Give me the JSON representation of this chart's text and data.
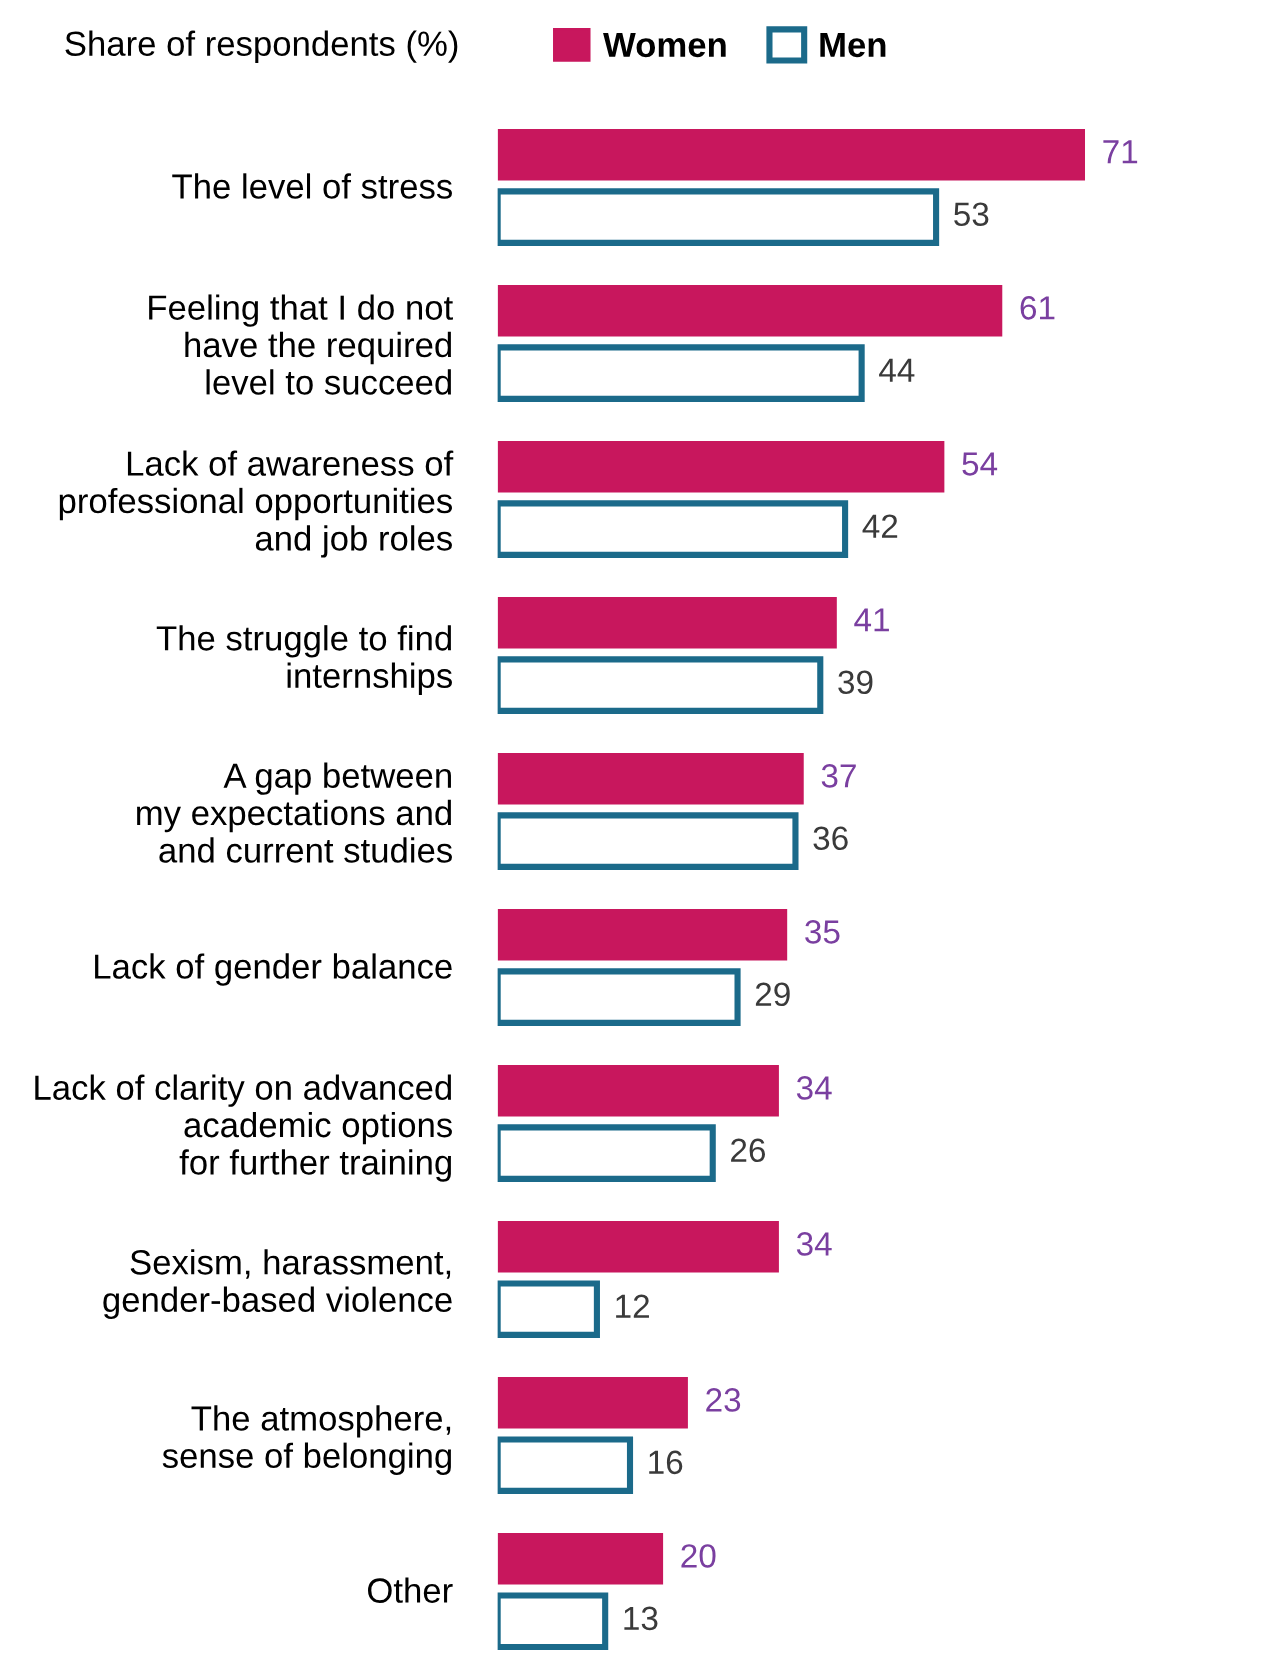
{
  "chart_data": {
    "type": "bar",
    "orientation": "horizontal",
    "legend_title": "Share of respondents (%)",
    "legend": "top",
    "data_labels": true,
    "grid": false,
    "categories": [
      "The level of stress",
      "Feeling that I do not\nhave the required\nlevel to succeed",
      "Lack of awareness of\nprofessional opportunities\nand job roles",
      "The struggle to find\ninternships",
      "A gap between\nmy expectations and\nand current studies",
      "Lack of gender balance",
      "Lack of clarity on advanced\nacademic options\nfor further training",
      "Sexism, harassment,\ngender-based violence",
      "The atmosphere,\nsense of belonging",
      "Other"
    ],
    "series": [
      {
        "name": "Women",
        "color": "#c8175d",
        "values": [
          71,
          61,
          54,
          41,
          37,
          35,
          34,
          34,
          23,
          20
        ]
      },
      {
        "name": "Men",
        "color": "#1b6a8a",
        "values": [
          53,
          44,
          42,
          39,
          36,
          29,
          26,
          12,
          16,
          13
        ]
      }
    ]
  }
}
